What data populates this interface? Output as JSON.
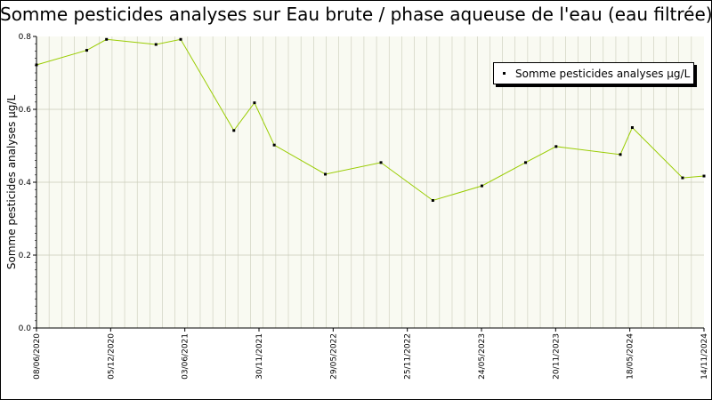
{
  "chart_data": {
    "type": "line",
    "title": "Somme pesticides analyses sur Eau brute / phase aqueuse de l'eau (eau filtrée)",
    "xlabel": "",
    "ylabel": "Somme pesticides analyses µg/L",
    "ylim": [
      0,
      0.8
    ],
    "yticks": [
      "0.0",
      "0.2",
      "0.4",
      "0.6",
      "0.8"
    ],
    "xlim": [
      "2020-06-08",
      "2024-11-14"
    ],
    "xticks": [
      "08/06/2020",
      "05/12/2020",
      "03/06/2021",
      "30/11/2021",
      "29/05/2022",
      "25/11/2022",
      "24/05/2023",
      "20/11/2023",
      "18/05/2024",
      "14/11/2024"
    ],
    "grid": true,
    "legend": "top-right",
    "series": [
      {
        "name": "Somme pesticides analyses µg/L",
        "color": "#99cc00",
        "x": [
          "2020-06-08",
          "2020-10-08",
          "2020-11-25",
          "2021-03-25",
          "2021-05-24",
          "2021-09-30",
          "2021-11-19",
          "2022-01-06",
          "2022-05-10",
          "2022-09-22",
          "2023-01-26",
          "2023-05-25",
          "2023-09-08",
          "2023-11-21",
          "2024-04-25",
          "2024-05-24",
          "2024-09-23",
          "2024-11-14"
        ],
        "values": [
          0.722,
          0.762,
          0.792,
          0.778,
          0.792,
          0.542,
          0.618,
          0.502,
          0.422,
          0.454,
          0.35,
          0.39,
          0.454,
          0.498,
          0.476,
          0.55,
          0.412,
          0.417
        ]
      }
    ]
  }
}
